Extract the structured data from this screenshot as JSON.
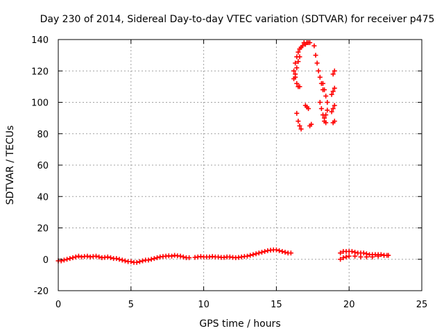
{
  "chart_data": {
    "type": "scatter",
    "title": "Day 230 of 2014, Sidereal Day-to-day VTEC variation (SDTVAR) for receiver p475",
    "xlabel": "GPS time / hours",
    "ylabel": "SDTVAR / TECUs",
    "xlim": [
      0,
      25
    ],
    "ylim": [
      -20,
      140
    ],
    "x_ticks": [
      0,
      5,
      10,
      15,
      20,
      25
    ],
    "y_ticks": [
      -20,
      0,
      20,
      40,
      60,
      80,
      100,
      120,
      140
    ],
    "x_tick_labels": [
      "0",
      "5",
      "10",
      "15",
      "20",
      "25"
    ],
    "y_tick_labels": [
      "-20",
      "0",
      "20",
      "40",
      "60",
      "80",
      "100",
      "120",
      "140"
    ],
    "grid": true,
    "marker": "+",
    "color": "#ff0000",
    "series": [
      {
        "name": "SDTVAR",
        "x": [
          0.0,
          0.2,
          0.4,
          0.6,
          0.8,
          1.0,
          1.2,
          1.4,
          1.6,
          1.8,
          2.0,
          2.2,
          2.4,
          2.6,
          2.8,
          3.0,
          3.2,
          3.4,
          3.6,
          3.8,
          4.0,
          4.2,
          4.4,
          4.6,
          4.8,
          5.0,
          5.2,
          5.4,
          5.6,
          5.8,
          6.0,
          6.2,
          6.4,
          6.6,
          6.8,
          7.0,
          7.2,
          7.4,
          7.6,
          7.8,
          8.0,
          8.2,
          8.4,
          8.6,
          8.8,
          9.0,
          9.4,
          9.6,
          9.8,
          10.0,
          10.2,
          10.4,
          10.6,
          10.8,
          11.0,
          11.2,
          11.4,
          11.6,
          11.8,
          12.0,
          12.2,
          12.4,
          12.6,
          12.8,
          13.0,
          13.2,
          13.4,
          13.6,
          13.8,
          14.0,
          14.2,
          14.4,
          14.6,
          14.8,
          15.0,
          15.2,
          15.4,
          15.6,
          15.8,
          16.0,
          16.2,
          16.3,
          16.4,
          16.5,
          16.6,
          16.3,
          16.4,
          16.5,
          16.6,
          16.7,
          16.8,
          16.9,
          17.0,
          17.1,
          17.2,
          17.3,
          16.2,
          16.3,
          16.4,
          16.5,
          16.6,
          16.4,
          16.5,
          16.6,
          16.7,
          17.3,
          17.4,
          17.0,
          17.1,
          17.2,
          17.6,
          17.7,
          17.8,
          17.9,
          18.0,
          18.1,
          18.2,
          18.0,
          18.1,
          18.2,
          18.3,
          18.4,
          18.5,
          18.2,
          18.3,
          18.4,
          18.5,
          18.3,
          18.4,
          18.9,
          19.0,
          18.8,
          18.9,
          19.0,
          18.8,
          18.9,
          19.0,
          18.9,
          19.0,
          19.4,
          19.6,
          19.8,
          20.0,
          20.2,
          20.4,
          20.6,
          20.8,
          21.0,
          21.2,
          21.4,
          21.6,
          21.8,
          22.0,
          22.2,
          22.4,
          22.6,
          22.7,
          19.4,
          19.6,
          19.8,
          20.0,
          20.4,
          20.8,
          21.2,
          21.6,
          22.0,
          22.4
        ],
        "y": [
          -1,
          -1,
          -0.5,
          0,
          0.5,
          1,
          1.5,
          2,
          1.5,
          1.8,
          2,
          1.5,
          1.8,
          2,
          1.5,
          1,
          1.2,
          1.5,
          1,
          0.5,
          0.5,
          0,
          -0.5,
          -1,
          -1.5,
          -1.5,
          -2,
          -2,
          -1.5,
          -1,
          -0.5,
          -0.5,
          0,
          0.5,
          1,
          1.5,
          1.8,
          2,
          2.2,
          2,
          2.5,
          2.2,
          2,
          1.5,
          1,
          1,
          1.2,
          1.5,
          1.8,
          1.5,
          1.5,
          1.5,
          1.8,
          1.5,
          1.5,
          1.2,
          1.2,
          1.5,
          1.5,
          1.2,
          1,
          1.2,
          1.5,
          1.8,
          2,
          2.5,
          3,
          3.5,
          4,
          4.5,
          5,
          5.5,
          5.8,
          6,
          6,
          5.5,
          5,
          4.5,
          4,
          4,
          115,
          118,
          122,
          126,
          129,
          125,
          129,
          132,
          134,
          135,
          136,
          138,
          137,
          138,
          138,
          138,
          120,
          116,
          112,
          110,
          110,
          93,
          88,
          85,
          83,
          85,
          86,
          98,
          97,
          96,
          136,
          130,
          125,
          120,
          116,
          112,
          108,
          100,
          96,
          92,
          88,
          92,
          95,
          112,
          108,
          104,
          100,
          90,
          87,
          118,
          120,
          105,
          107,
          109,
          94,
          96,
          98,
          87,
          88,
          4,
          5,
          5,
          5,
          5,
          4.5,
          4,
          4,
          4,
          3.5,
          3,
          3,
          3,
          3,
          3,
          2.5,
          2.5,
          2.5,
          0,
          1,
          1.5,
          2,
          2,
          1.5,
          1.5,
          1.5,
          2,
          2.5
        ]
      }
    ]
  }
}
